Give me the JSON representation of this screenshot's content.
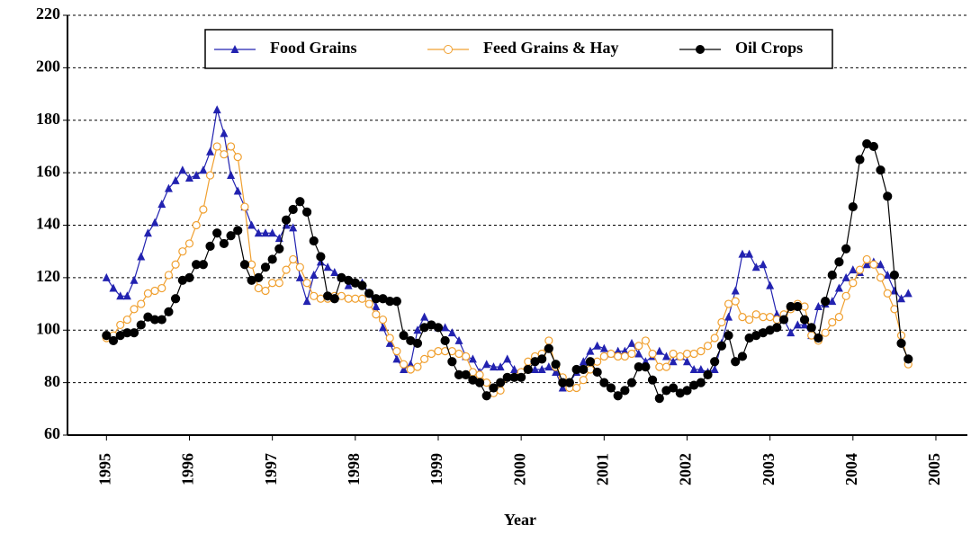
{
  "chart_data": {
    "type": "line",
    "x_label": "Year",
    "x": [
      1995,
      1995.083,
      1995.167,
      1995.25,
      1995.333,
      1995.417,
      1995.5,
      1995.583,
      1995.667,
      1995.75,
      1995.833,
      1995.917,
      1996,
      1996.083,
      1996.167,
      1996.25,
      1996.333,
      1996.417,
      1996.5,
      1996.583,
      1996.667,
      1996.75,
      1996.833,
      1996.917,
      1997,
      1997.083,
      1997.167,
      1997.25,
      1997.333,
      1997.417,
      1997.5,
      1997.583,
      1997.667,
      1997.75,
      1997.833,
      1997.917,
      1998,
      1998.083,
      1998.167,
      1998.25,
      1998.333,
      1998.417,
      1998.5,
      1998.583,
      1998.667,
      1998.75,
      1998.833,
      1998.917,
      1999,
      1999.083,
      1999.167,
      1999.25,
      1999.333,
      1999.417,
      1999.5,
      1999.583,
      1999.667,
      1999.75,
      1999.833,
      1999.917,
      2000,
      2000.083,
      2000.167,
      2000.25,
      2000.333,
      2000.417,
      2000.5,
      2000.583,
      2000.667,
      2000.75,
      2000.833,
      2000.917,
      2001,
      2001.083,
      2001.167,
      2001.25,
      2001.333,
      2001.417,
      2001.5,
      2001.583,
      2001.667,
      2001.75,
      2001.833,
      2001.917,
      2002,
      2002.083,
      2002.167,
      2002.25,
      2002.333,
      2002.417,
      2002.5,
      2002.583,
      2002.667,
      2002.75,
      2002.833,
      2002.917,
      2003,
      2003.083,
      2003.167,
      2003.25,
      2003.333,
      2003.417,
      2003.5,
      2003.583,
      2003.667,
      2003.75,
      2003.833,
      2003.917,
      2004,
      2004.083,
      2004.167,
      2004.25,
      2004.333,
      2004.417,
      2004.5,
      2004.583,
      2004.667
    ],
    "series": [
      {
        "name": "Food Grains",
        "color": "#2222b0",
        "marker": "triangle",
        "values": [
          120,
          116,
          113,
          113,
          119,
          128,
          137,
          141,
          148,
          154,
          157,
          161,
          158,
          159,
          161,
          168,
          184,
          175,
          159,
          153,
          147,
          140,
          137,
          137,
          137,
          135,
          140,
          139,
          120,
          111,
          121,
          126,
          124,
          122,
          120,
          117,
          118,
          118,
          114,
          109,
          101,
          95,
          89,
          85,
          87,
          100,
          105,
          102,
          101,
          101,
          99,
          96,
          90,
          89,
          84,
          87,
          86,
          86,
          89,
          85,
          84,
          85,
          85,
          85,
          86,
          84,
          78,
          80,
          84,
          88,
          92,
          94,
          93,
          91,
          92,
          92,
          95,
          91,
          88,
          90,
          92,
          90,
          88,
          90,
          88,
          85,
          85,
          84,
          85,
          95,
          105,
          115,
          129,
          129,
          124,
          125,
          117,
          106,
          104,
          99,
          102,
          102,
          98,
          109,
          110,
          111,
          116,
          120,
          123,
          122,
          125,
          126,
          125,
          121,
          115,
          112,
          114
        ]
      },
      {
        "name": "Feed Grains & Hay",
        "color": "#f0a030",
        "marker": "circle-open",
        "values": [
          97,
          98,
          102,
          104,
          108,
          110,
          114,
          115,
          116,
          121,
          125,
          130,
          133,
          140,
          146,
          159,
          170,
          167,
          170,
          166,
          147,
          125,
          116,
          115,
          118,
          118,
          123,
          127,
          124,
          118,
          113,
          112,
          112,
          113,
          113,
          112,
          112,
          112,
          110,
          106,
          104,
          97,
          92,
          87,
          85,
          86,
          89,
          91,
          92,
          92,
          92,
          91,
          90,
          84,
          83,
          80,
          76,
          77,
          82,
          82,
          84,
          88,
          90,
          91,
          96,
          86,
          82,
          78,
          78,
          81,
          85,
          88,
          90,
          91,
          90,
          90,
          91,
          94,
          96,
          91,
          86,
          86,
          91,
          90,
          91,
          91,
          92,
          94,
          97,
          103,
          110,
          111,
          105,
          104,
          106,
          105,
          105,
          104,
          106,
          108,
          110,
          109,
          98,
          96,
          99,
          103,
          105,
          113,
          118,
          123,
          127,
          125,
          120,
          114,
          108,
          98,
          87
        ]
      },
      {
        "name": "Oil Crops",
        "color": "#000000",
        "marker": "circle",
        "values": [
          98,
          96,
          98,
          99,
          99,
          102,
          105,
          104,
          104,
          107,
          112,
          119,
          120,
          125,
          125,
          132,
          137,
          133,
          136,
          138,
          125,
          119,
          120,
          124,
          127,
          131,
          142,
          146,
          149,
          145,
          134,
          128,
          113,
          112,
          120,
          119,
          118,
          117,
          114,
          112,
          112,
          111,
          111,
          98,
          96,
          95,
          101,
          102,
          101,
          96,
          88,
          83,
          83,
          81,
          80,
          75,
          78,
          80,
          82,
          82,
          82,
          85,
          88,
          89,
          93,
          87,
          80,
          80,
          85,
          85,
          88,
          84,
          80,
          78,
          75,
          77,
          80,
          86,
          86,
          81,
          74,
          77,
          78,
          76,
          77,
          79,
          80,
          83,
          88,
          94,
          98,
          88,
          90,
          97,
          98,
          99,
          100,
          101,
          104,
          109,
          109,
          104,
          101,
          97,
          111,
          121,
          126,
          131,
          147,
          165,
          171,
          170,
          161,
          151,
          121,
          95,
          89
        ]
      }
    ],
    "xlim": [
      1994.53,
      2005.38
    ],
    "xticks": [
      1995,
      1996,
      1997,
      1998,
      1999,
      2000,
      2001,
      2002,
      2003,
      2004,
      2005
    ],
    "ylim": [
      60,
      220
    ],
    "yticks": [
      60,
      80,
      100,
      120,
      140,
      160,
      180,
      200,
      220
    ],
    "grid": true,
    "legend": "top"
  }
}
